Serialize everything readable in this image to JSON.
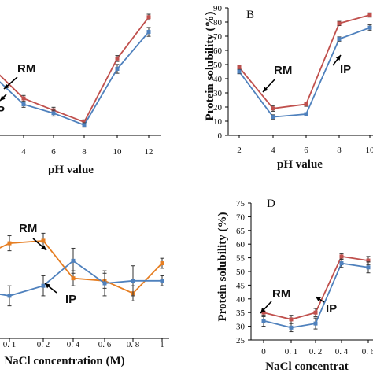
{
  "chart_data": [
    {
      "panel": "A",
      "type": "line",
      "x": [
        2,
        4,
        6,
        8,
        10,
        12
      ],
      "xlabel": "pH value",
      "ylabel": "",
      "xlim": [
        2,
        12
      ],
      "ylim": [
        0,
        90
      ],
      "xticks": [
        "4",
        "6",
        "8",
        "10",
        "12"
      ],
      "yticks": [],
      "series": [
        {
          "name": "RM",
          "color": "#c0504d",
          "values": [
            50,
            25,
            17,
            9,
            52,
            80
          ],
          "errors": [
            2,
            2,
            2,
            1.5,
            2,
            2
          ]
        },
        {
          "name": "IP",
          "color": "#4f81bd",
          "values": [
            45,
            21,
            15,
            7,
            45,
            70
          ],
          "errors": [
            2,
            2,
            2,
            1.5,
            3,
            3
          ]
        }
      ],
      "annotations": [
        {
          "text": "RM"
        },
        {
          "text": "P"
        }
      ]
    },
    {
      "panel": "B",
      "type": "line",
      "x": [
        2,
        4,
        6,
        8,
        10
      ],
      "xlabel": "pH value",
      "ylabel": "Protein solubility (%)",
      "xlim": [
        2,
        10
      ],
      "ylim": [
        0,
        90
      ],
      "yticks": [
        "0",
        "10",
        "20",
        "30",
        "40",
        "50",
        "60",
        "70",
        "80",
        "90"
      ],
      "xticks": [
        "2",
        "4",
        "6",
        "8",
        "10"
      ],
      "series": [
        {
          "name": "RM",
          "color": "#c0504d",
          "values": [
            48,
            19,
            22,
            79,
            85
          ],
          "errors": [
            1.5,
            2,
            1.5,
            1.5,
            1.5
          ]
        },
        {
          "name": "IP",
          "color": "#4f81bd",
          "values": [
            45,
            13,
            15,
            68,
            76
          ],
          "errors": [
            1.5,
            1.5,
            1,
            1.5,
            2
          ]
        }
      ],
      "annotations": [
        {
          "text": "RM"
        },
        {
          "text": "IP"
        }
      ]
    },
    {
      "panel": "C",
      "type": "line",
      "x": [
        0,
        0.1,
        0.2,
        0.4,
        0.6,
        0.8,
        1
      ],
      "xlabel": "NaCl concentration (M)",
      "ylabel": "",
      "xticks": [
        "0. 1",
        "0. 2",
        "0. 4",
        "0. 6",
        "0. 8",
        "1"
      ],
      "series": [
        {
          "name": "RM",
          "color": "#e67e22",
          "values": [
            55,
            58,
            59,
            44,
            43,
            38,
            50
          ],
          "errors": [
            3,
            3,
            3,
            3,
            3,
            3,
            2
          ]
        },
        {
          "name": "IP",
          "color": "#4f81bd",
          "values": [
            38,
            37,
            41,
            51,
            42,
            43,
            43
          ],
          "errors": [
            6,
            4,
            4,
            5,
            5,
            6,
            2
          ]
        }
      ],
      "annotations": [
        {
          "text": "RM"
        },
        {
          "text": "IP"
        }
      ]
    },
    {
      "panel": "D",
      "type": "line",
      "x": [
        0,
        0.1,
        0.2,
        0.4,
        0.6
      ],
      "xlabel": "NaCl concentrat",
      "ylabel": "Protein solubility (%)",
      "ylim": [
        25,
        75
      ],
      "yticks": [
        "25",
        "30",
        "35",
        "40",
        "45",
        "50",
        "55",
        "60",
        "65",
        "70",
        "75"
      ],
      "xticks": [
        "0",
        "0. 1",
        "0. 2",
        "0. 4",
        "0. 6"
      ],
      "series": [
        {
          "name": "RM",
          "color": "#c0504d",
          "values": [
            35,
            32.5,
            35,
            55.5,
            54
          ],
          "errors": [
            1.5,
            1.5,
            1.5,
            1,
            1.5
          ]
        },
        {
          "name": "IP",
          "color": "#4f81bd",
          "values": [
            32,
            29.5,
            31,
            53,
            51.5
          ],
          "errors": [
            2,
            1.5,
            2,
            1.5,
            2
          ]
        }
      ],
      "annotations": [
        {
          "text": "RM"
        },
        {
          "text": "IP"
        }
      ]
    }
  ]
}
